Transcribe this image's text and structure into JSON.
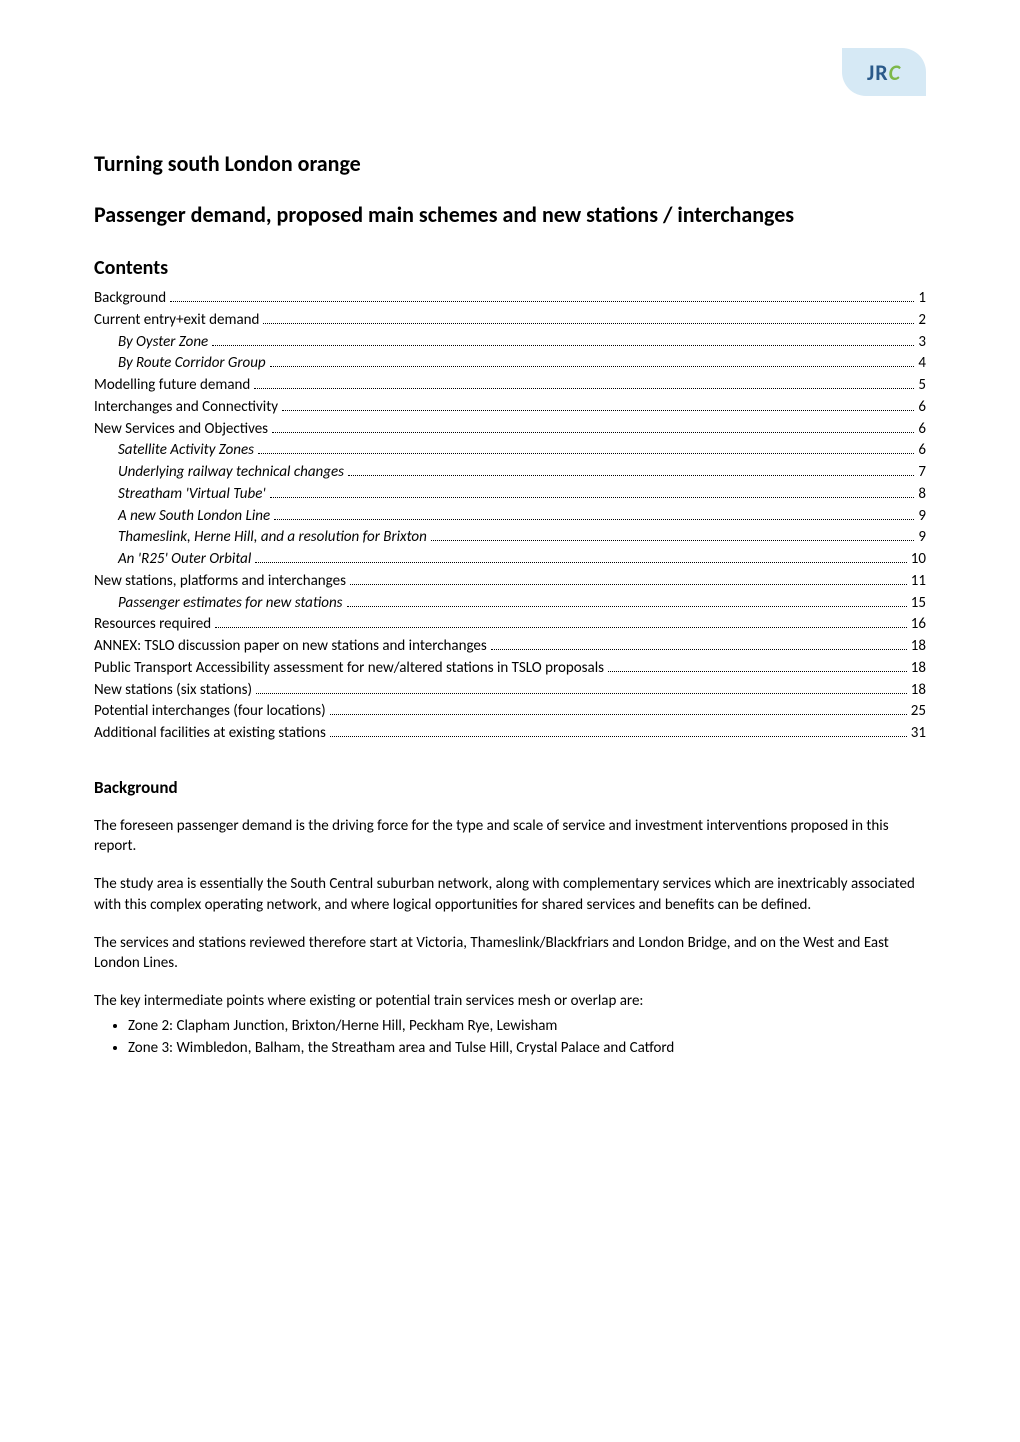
{
  "logo": {
    "jr": "JR",
    "c": "C"
  },
  "title": "Turning south London orange",
  "subtitle": "Passenger demand, proposed main schemes and new stations / interchanges",
  "contents_heading": "Contents",
  "toc": [
    {
      "label": "Background",
      "page": "1",
      "italic": false,
      "indent": false
    },
    {
      "label": "Current entry+exit demand",
      "page": "2",
      "italic": false,
      "indent": false
    },
    {
      "label": "By Oyster Zone",
      "page": "3",
      "italic": true,
      "indent": true
    },
    {
      "label": "By Route Corridor Group",
      "page": "4",
      "italic": true,
      "indent": true
    },
    {
      "label": "Modelling future demand",
      "page": "5",
      "italic": false,
      "indent": false
    },
    {
      "label": "Interchanges and Connectivity",
      "page": "6",
      "italic": false,
      "indent": false
    },
    {
      "label": "New Services and Objectives",
      "page": "6",
      "italic": false,
      "indent": false
    },
    {
      "label": "Satellite Activity Zones",
      "page": "6",
      "italic": true,
      "indent": true
    },
    {
      "label": "Underlying railway technical changes",
      "page": "7",
      "italic": true,
      "indent": true
    },
    {
      "label": "Streatham 'Virtual Tube'",
      "page": "8",
      "italic": true,
      "indent": true
    },
    {
      "label": "A new South London Line",
      "page": "9",
      "italic": true,
      "indent": true
    },
    {
      "label": "Thameslink, Herne Hill, and a resolution for Brixton",
      "page": "9",
      "italic": true,
      "indent": true
    },
    {
      "label": "An 'R25' Outer Orbital",
      "page": "10",
      "italic": true,
      "indent": true
    },
    {
      "label": "New stations, platforms and interchanges",
      "page": "11",
      "italic": false,
      "indent": false
    },
    {
      "label": "Passenger estimates for new stations",
      "page": "15",
      "italic": true,
      "indent": true
    },
    {
      "label": "Resources required",
      "page": "16",
      "italic": false,
      "indent": false
    },
    {
      "label": "ANNEX: TSLO discussion paper on new stations and interchanges",
      "page": "18",
      "italic": false,
      "indent": false
    },
    {
      "label": "Public Transport Accessibility assessment for new/altered stations in TSLO proposals",
      "page": "18",
      "italic": false,
      "indent": false
    },
    {
      "label": "New stations (six stations)",
      "page": "18",
      "italic": false,
      "indent": false
    },
    {
      "label": "Potential interchanges (four locations)",
      "page": "25",
      "italic": false,
      "indent": false
    },
    {
      "label": "Additional facilities at existing stations",
      "page": "31",
      "italic": false,
      "indent": false
    }
  ],
  "background": {
    "heading": "Background",
    "p1": "The foreseen passenger demand is the driving force for the type and scale of service and investment interventions proposed in this report.",
    "p2": "The study area is essentially the South Central suburban network, along with complementary services which are inextricably associated with this complex operating network, and where logical opportunities for shared services and benefits can be defined.",
    "p3": "The services and stations reviewed therefore start at Victoria, Thameslink/Blackfriars and London Bridge, and on the West and East London Lines.",
    "p4": "The key intermediate points where existing or potential train services mesh or overlap are:",
    "bullets": [
      "Zone 2: Clapham Junction, Brixton/Herne Hill, Peckham Rye, Lewisham",
      "Zone 3: Wimbledon, Balham, the Streatham area and Tulse Hill, Crystal Palace and Catford"
    ]
  },
  "colors": {
    "text": "#000000",
    "background": "#ffffff",
    "logo_bg": "#d6e9f5",
    "logo_jr": "#2a5a8a",
    "logo_c": "#7db84a"
  }
}
